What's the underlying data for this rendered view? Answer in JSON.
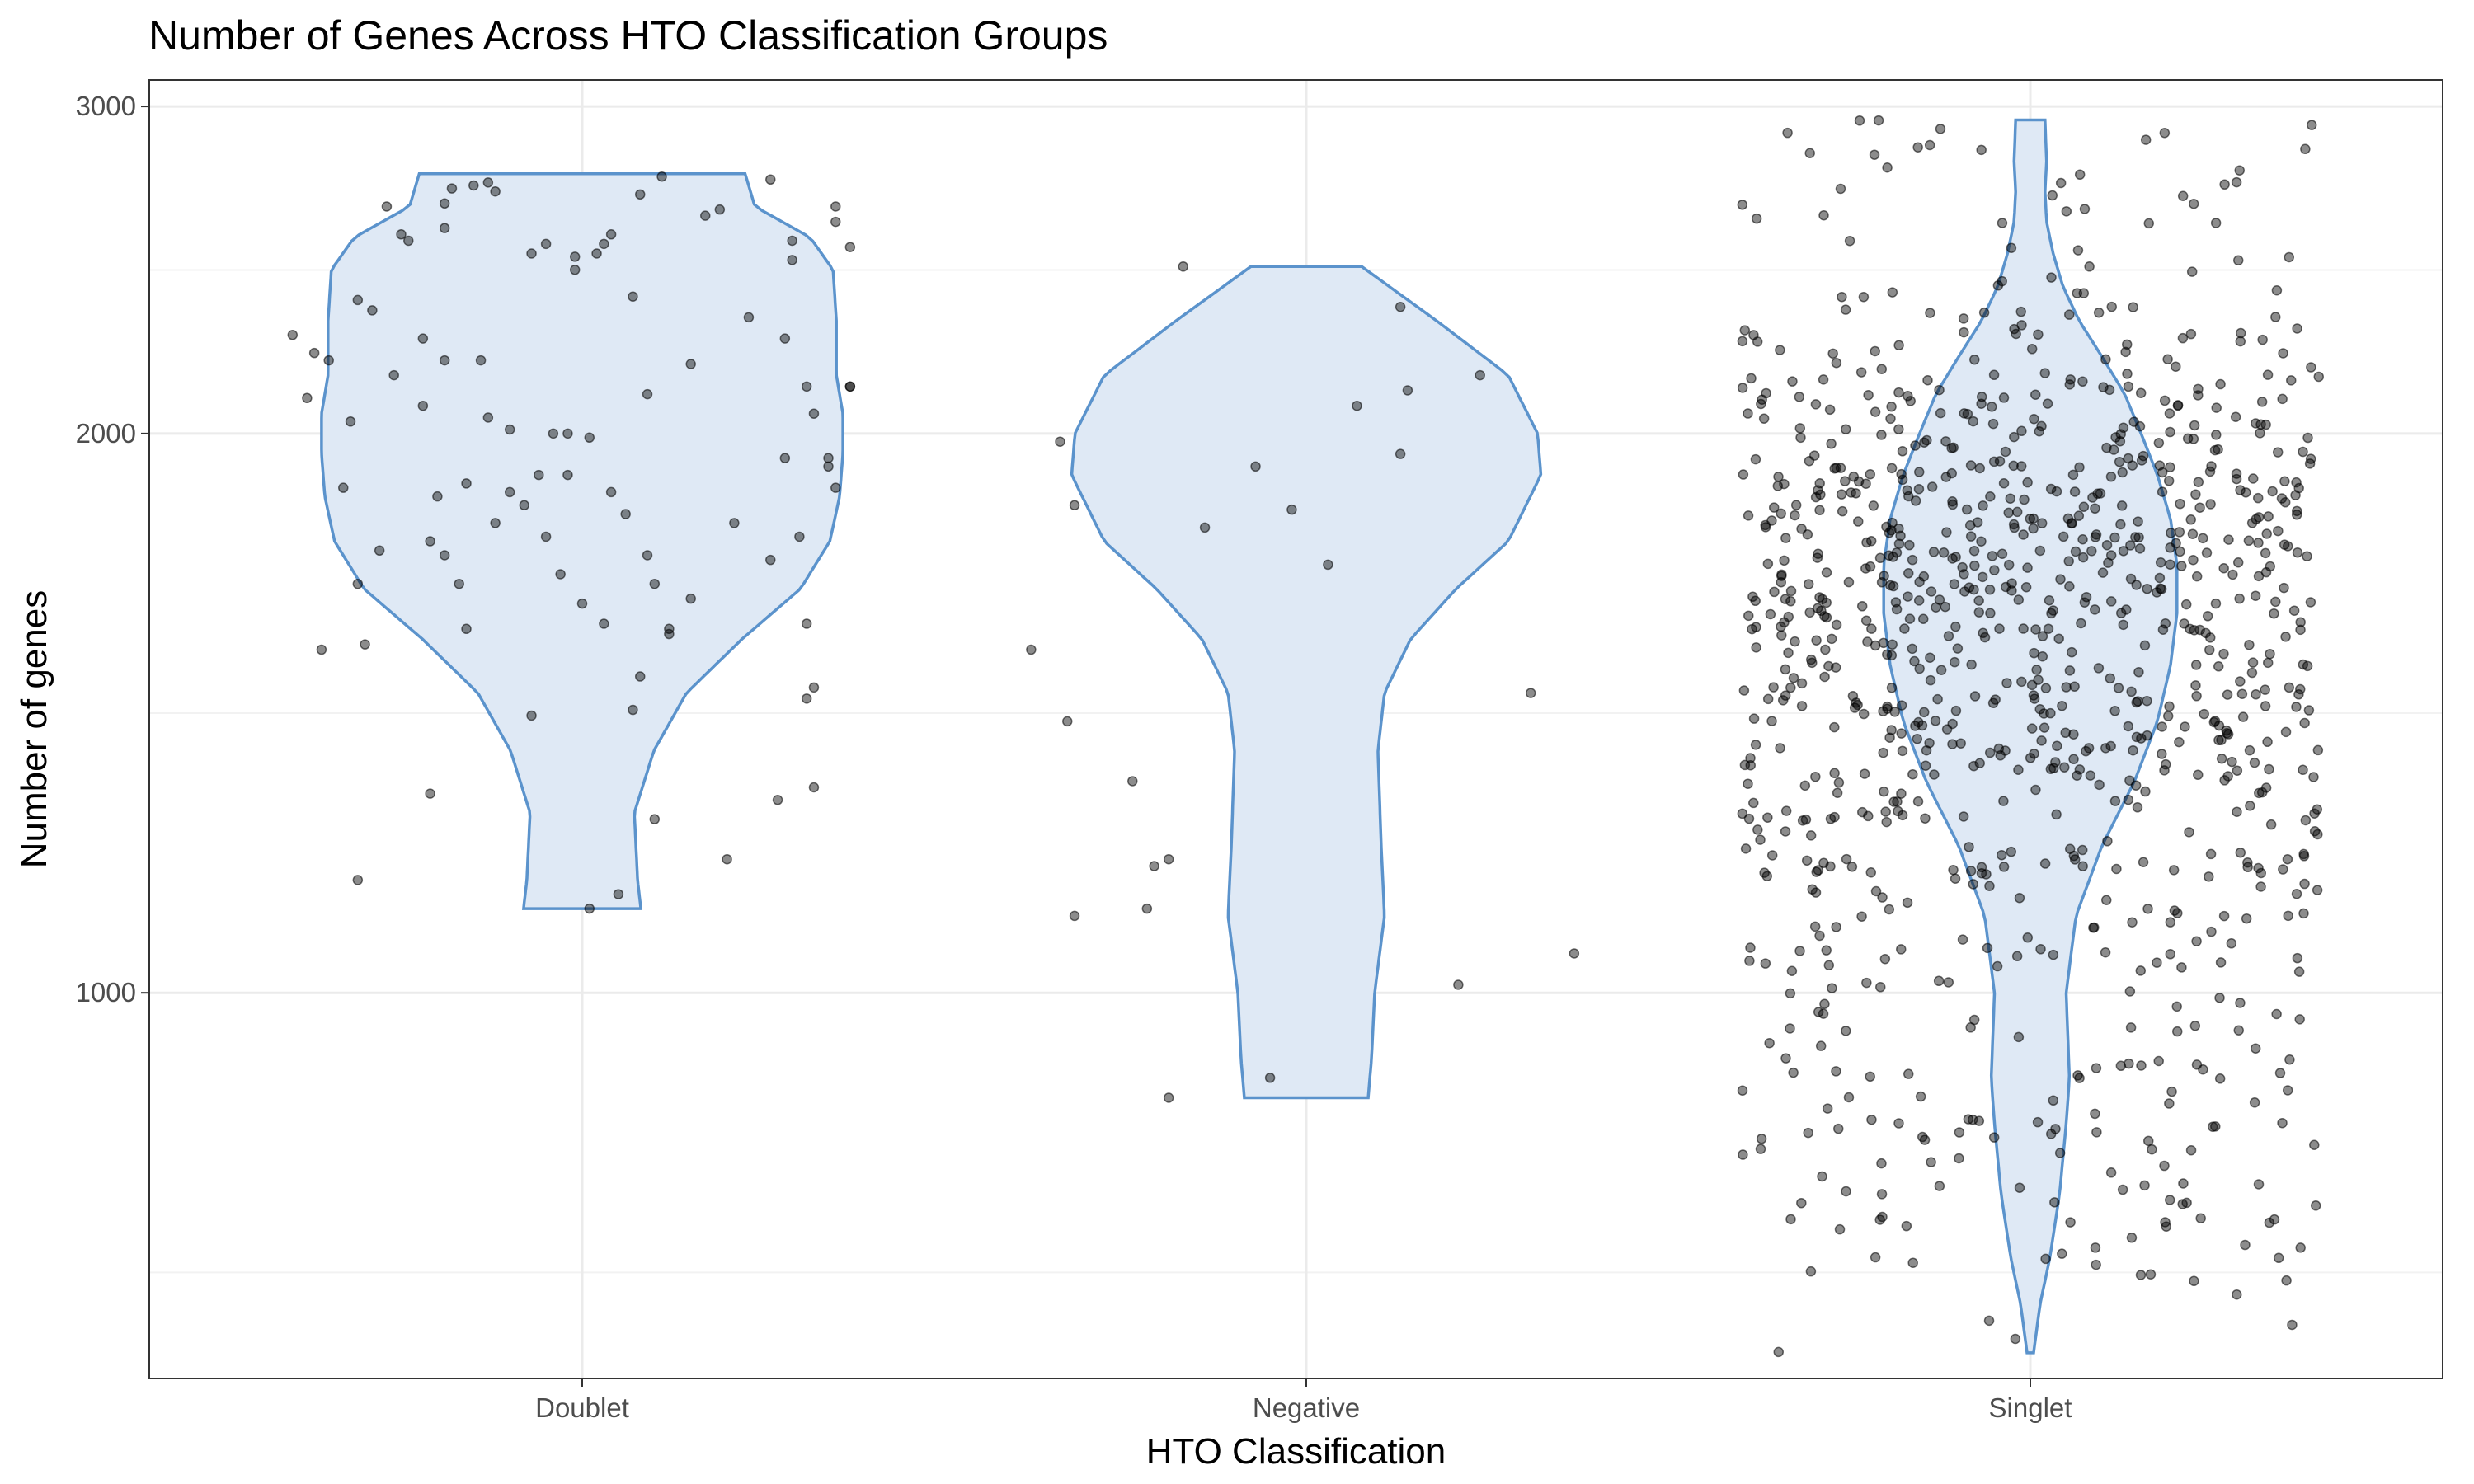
{
  "chart_data": {
    "type": "violin",
    "title": "Number of Genes Across HTO Classification Groups",
    "xlabel": "HTO Classification",
    "ylabel": "Number of genes",
    "y_scale": "log10",
    "ylim": [
      620,
      3100
    ],
    "y_ticks": [
      1000,
      2000,
      3000
    ],
    "y_tick_labels": [
      "1000",
      "2000",
      "3000"
    ],
    "grid": true,
    "legend": "none",
    "colors": {
      "violin_fill": "#dfe9f5",
      "violin_outline": "#5b93cc",
      "points": "#000000"
    },
    "categories": [
      "Doublet",
      "Negative",
      "Singlet"
    ],
    "groups": [
      {
        "name": "Doublet",
        "range": [
          1110,
          2760
        ],
        "density_profile": [
          [
            1110,
            0.18
          ],
          [
            1150,
            0.17
          ],
          [
            1250,
            0.16
          ],
          [
            1350,
            0.22
          ],
          [
            1450,
            0.32
          ],
          [
            1550,
            0.49
          ],
          [
            1650,
            0.67
          ],
          [
            1750,
            0.76
          ],
          [
            1850,
            0.79
          ],
          [
            1950,
            0.8
          ],
          [
            2050,
            0.8
          ],
          [
            2150,
            0.78
          ],
          [
            2300,
            0.78
          ],
          [
            2450,
            0.77
          ],
          [
            2550,
            0.7
          ],
          [
            2650,
            0.53
          ],
          [
            2760,
            0.5
          ]
        ],
        "points": [
          [
            -0.4,
            2260
          ],
          [
            -0.38,
            2090
          ],
          [
            -0.37,
            2210
          ],
          [
            -0.36,
            1530
          ],
          [
            -0.35,
            2190
          ],
          [
            -0.33,
            1870
          ],
          [
            -0.32,
            2030
          ],
          [
            -0.31,
            1660
          ],
          [
            -0.31,
            1150
          ],
          [
            -0.3,
            1540
          ],
          [
            -0.31,
            2360
          ],
          [
            -0.29,
            2330
          ],
          [
            -0.28,
            1730
          ],
          [
            -0.27,
            2650
          ],
          [
            -0.25,
            2560
          ],
          [
            -0.26,
            2150
          ],
          [
            -0.24,
            2540
          ],
          [
            -0.22,
            2250
          ],
          [
            -0.22,
            2070
          ],
          [
            -0.21,
            1750
          ],
          [
            -0.21,
            1280
          ],
          [
            -0.2,
            1850
          ],
          [
            -0.19,
            2580
          ],
          [
            -0.19,
            1720
          ],
          [
            -0.19,
            2660
          ],
          [
            -0.19,
            2190
          ],
          [
            -0.18,
            2710
          ],
          [
            -0.17,
            1660
          ],
          [
            -0.16,
            1880
          ],
          [
            -0.16,
            1570
          ],
          [
            -0.15,
            2720
          ],
          [
            -0.14,
            2190
          ],
          [
            -0.13,
            2730
          ],
          [
            -0.13,
            2040
          ],
          [
            -0.12,
            2700
          ],
          [
            -0.12,
            1790
          ],
          [
            -0.1,
            1860
          ],
          [
            -0.1,
            2010
          ],
          [
            -0.08,
            1830
          ],
          [
            -0.07,
            1410
          ],
          [
            -0.07,
            2500
          ],
          [
            -0.06,
            1900
          ],
          [
            -0.05,
            2530
          ],
          [
            -0.05,
            1760
          ],
          [
            -0.04,
            2000
          ],
          [
            -0.03,
            1680
          ],
          [
            -0.02,
            2000
          ],
          [
            -0.02,
            1900
          ],
          [
            -0.01,
            2490
          ],
          [
            -0.01,
            2450
          ],
          [
            0.0,
            1620
          ],
          [
            0.01,
            1990
          ],
          [
            0.01,
            1110
          ],
          [
            0.02,
            2500
          ],
          [
            0.03,
            2530
          ],
          [
            0.04,
            2560
          ],
          [
            0.03,
            1580
          ],
          [
            0.04,
            1860
          ],
          [
            0.05,
            1130
          ],
          [
            0.06,
            1810
          ],
          [
            0.07,
            1420
          ],
          [
            0.07,
            2370
          ],
          [
            0.08,
            1480
          ],
          [
            0.08,
            2690
          ],
          [
            0.09,
            2100
          ],
          [
            0.09,
            1720
          ],
          [
            0.1,
            1240
          ],
          [
            0.1,
            1660
          ],
          [
            0.11,
            2750
          ],
          [
            0.12,
            1570
          ],
          [
            0.12,
            1560
          ],
          [
            0.15,
            1630
          ],
          [
            0.15,
            2180
          ],
          [
            0.17,
            2620
          ],
          [
            0.19,
            2640
          ],
          [
            0.2,
            1180
          ],
          [
            0.21,
            1790
          ],
          [
            0.23,
            2310
          ],
          [
            0.26,
            1710
          ],
          [
            0.26,
            2740
          ],
          [
            0.27,
            1270
          ],
          [
            0.28,
            2250
          ],
          [
            0.28,
            1940
          ],
          [
            0.29,
            2540
          ],
          [
            0.29,
            2480
          ],
          [
            0.3,
            1760
          ],
          [
            0.31,
            1580
          ],
          [
            0.31,
            2120
          ],
          [
            0.31,
            1440
          ],
          [
            0.32,
            1290
          ],
          [
            0.32,
            1460
          ],
          [
            0.32,
            2050
          ],
          [
            0.34,
            1940
          ],
          [
            0.34,
            1920
          ],
          [
            0.35,
            2650
          ],
          [
            0.35,
            1870
          ],
          [
            0.35,
            2600
          ],
          [
            0.37,
            2120
          ],
          [
            0.37,
            2120
          ],
          [
            0.37,
            2520
          ]
        ]
      },
      {
        "name": "Negative",
        "range": [
          878,
          2460
        ],
        "density_profile": [
          [
            878,
            0.19
          ],
          [
            920,
            0.2
          ],
          [
            1000,
            0.21
          ],
          [
            1100,
            0.24
          ],
          [
            1200,
            0.23
          ],
          [
            1350,
            0.22
          ],
          [
            1450,
            0.24
          ],
          [
            1550,
            0.32
          ],
          [
            1650,
            0.46
          ],
          [
            1750,
            0.62
          ],
          [
            1900,
            0.72
          ],
          [
            2000,
            0.71
          ],
          [
            2150,
            0.62
          ],
          [
            2300,
            0.4
          ],
          [
            2460,
            0.17
          ]
        ],
        "points": [
          [
            -0.38,
            1530
          ],
          [
            -0.34,
            1980
          ],
          [
            -0.33,
            1400
          ],
          [
            -0.32,
            1100
          ],
          [
            -0.32,
            1830
          ],
          [
            -0.24,
            1300
          ],
          [
            -0.22,
            1110
          ],
          [
            -0.21,
            1170
          ],
          [
            -0.19,
            1180
          ],
          [
            -0.19,
            878
          ],
          [
            -0.17,
            2460
          ],
          [
            -0.14,
            1780
          ],
          [
            -0.07,
            1920
          ],
          [
            -0.05,
            900
          ],
          [
            -0.02,
            1820
          ],
          [
            0.03,
            1700
          ],
          [
            0.07,
            2070
          ],
          [
            0.13,
            1950
          ],
          [
            0.13,
            2340
          ],
          [
            0.14,
            2110
          ],
          [
            0.21,
            1010
          ],
          [
            0.24,
            2150
          ],
          [
            0.31,
            1450
          ],
          [
            0.37,
            1050
          ]
        ]
      },
      {
        "name": "Singlet",
        "range": [
          640,
          2950
        ],
        "density_profile": [
          [
            640,
            0.01
          ],
          [
            680,
            0.03
          ],
          [
            720,
            0.06
          ],
          [
            780,
            0.09
          ],
          [
            850,
            0.11
          ],
          [
            900,
            0.12
          ],
          [
            1000,
            0.11
          ],
          [
            1100,
            0.14
          ],
          [
            1200,
            0.22
          ],
          [
            1300,
            0.32
          ],
          [
            1400,
            0.39
          ],
          [
            1500,
            0.43
          ],
          [
            1600,
            0.45
          ],
          [
            1700,
            0.45
          ],
          [
            1800,
            0.43
          ],
          [
            1900,
            0.39
          ],
          [
            2000,
            0.34
          ],
          [
            2100,
            0.29
          ],
          [
            2200,
            0.22
          ],
          [
            2300,
            0.15
          ],
          [
            2400,
            0.1
          ],
          [
            2500,
            0.07
          ],
          [
            2600,
            0.05
          ],
          [
            2700,
            0.045
          ],
          [
            2800,
            0.05
          ],
          [
            2950,
            0.045
          ]
        ],
        "point_count": 1000
      }
    ]
  }
}
